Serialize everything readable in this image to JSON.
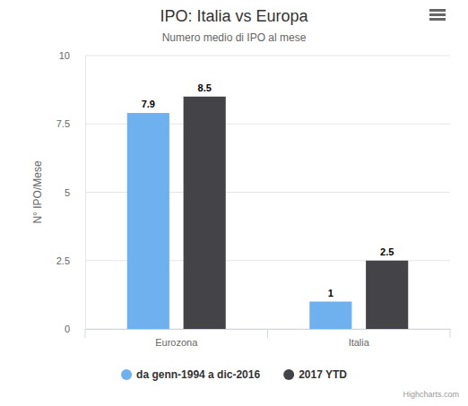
{
  "chart_data": {
    "type": "bar",
    "title": "IPO: Italia vs Europa",
    "subtitle": "Numero medio di IPO al mese",
    "y_label": "N° IPO/Mese",
    "categories": [
      "Eurozona",
      "Italia"
    ],
    "series": [
      {
        "name": "da genn-1994 a dic-2016",
        "color": "#6fb0ee",
        "values": [
          7.9,
          1
        ]
      },
      {
        "name": "2017 YTD",
        "color": "#434348",
        "values": [
          8.5,
          2.5
        ]
      }
    ],
    "ylim": [
      0,
      10
    ],
    "yticks": [
      0,
      2.5,
      5,
      7.5,
      10
    ],
    "grid": true,
    "data_labels": true,
    "legend": "bottom",
    "annotations": [
      "Highcharts.com"
    ]
  }
}
